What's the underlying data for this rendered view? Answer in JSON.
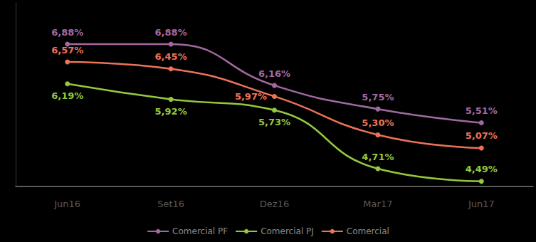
{
  "chart_data": {
    "type": "line",
    "categories": [
      "Jun16",
      "Set16",
      "Dez16",
      "Mar17",
      "Jun17"
    ],
    "series": [
      {
        "name": "Comercial PF",
        "color": "#a2699e",
        "values": [
          6.88,
          6.88,
          6.16,
          5.75,
          5.51
        ],
        "value_labels": [
          "6,88%",
          "6,88%",
          "6,16%",
          "5,75%",
          "5,51%"
        ]
      },
      {
        "name": "Comercial PJ",
        "color": "#95c83d",
        "values": [
          6.19,
          5.92,
          5.73,
          4.71,
          4.49
        ],
        "value_labels": [
          "6,19%",
          "5,92%",
          "5,73%",
          "4,71%",
          "4,49%"
        ]
      },
      {
        "name": "Comercial",
        "color": "#ec7358",
        "values": [
          6.57,
          6.45,
          5.97,
          5.3,
          5.07
        ],
        "value_labels": [
          "6,57%",
          "6,45%",
          "5,97%",
          "5,30%",
          "5,07%"
        ]
      }
    ],
    "ylim": [
      4.4,
      7.6
    ],
    "grid": false,
    "legend": "bottom",
    "data_labels": true,
    "tick_labels": "x",
    "marker": "circle"
  }
}
